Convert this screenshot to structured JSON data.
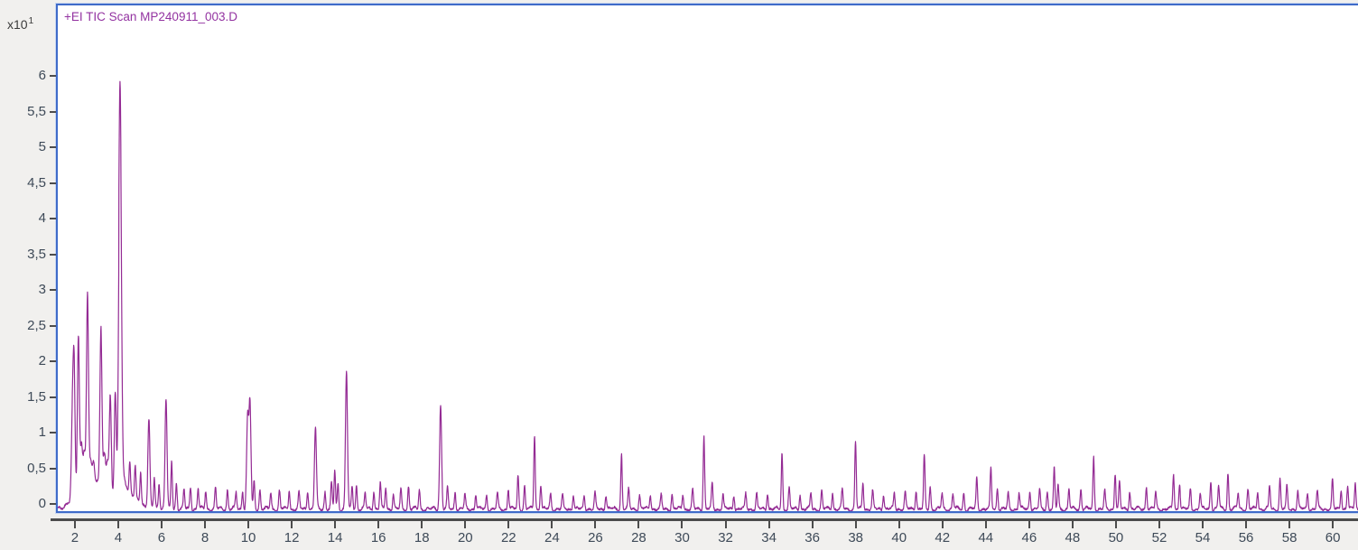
{
  "colors": {
    "window_bg": "#f1f0ee",
    "plot_bg": "#ffffff",
    "frame_border": "#3f6bc9",
    "axis_line": "#4c4c4c",
    "tick_label": "#3e4a58",
    "title": "#9333a1",
    "trace": "#942b94"
  },
  "chart_data": {
    "type": "line",
    "title": "+EI TIC Scan MP240911_003.D",
    "y_scale": {
      "base": "x10",
      "exponent": "1"
    },
    "legend": "none",
    "grid": false,
    "x_axis": {
      "range": [
        1.13,
        61.16
      ],
      "ticks": [
        2,
        4,
        6,
        8,
        10,
        12,
        14,
        16,
        18,
        20,
        22,
        24,
        26,
        28,
        30,
        32,
        34,
        36,
        38,
        40,
        42,
        44,
        46,
        48,
        50,
        52,
        54,
        56,
        58,
        60
      ],
      "labels": [
        "2",
        "4",
        "6",
        "8",
        "10",
        "12",
        "14",
        "16",
        "18",
        "20",
        "22",
        "24",
        "26",
        "28",
        "30",
        "32",
        "34",
        "36",
        "38",
        "40",
        "42",
        "44",
        "46",
        "48",
        "50",
        "52",
        "54",
        "56",
        "58",
        "60"
      ]
    },
    "y_axis": {
      "range": [
        -0.15,
        6.99
      ],
      "ticks": [
        0,
        0.5,
        1,
        1.5,
        2,
        2.5,
        3,
        3.5,
        4,
        4.5,
        5,
        5.5,
        6
      ],
      "labels": [
        "0",
        "0,5",
        "1",
        "1,5",
        "2",
        "2,5",
        "3",
        "3,5",
        "4",
        "4,5",
        "5",
        "5,5",
        "6"
      ]
    },
    "series": [
      {
        "name": "+EI TIC Scan",
        "color": "#942b94",
        "baseline": -0.07,
        "peaks": [
          [
            1.8,
            1.1
          ],
          [
            1.88,
            1.95
          ],
          [
            2.08,
            2.36
          ],
          [
            2.22,
            0.85
          ],
          [
            2.35,
            0.7
          ],
          [
            2.5,
            2.95
          ],
          [
            2.64,
            0.6
          ],
          [
            2.78,
            0.62
          ],
          [
            3.12,
            2.48
          ],
          [
            3.28,
            0.68
          ],
          [
            3.42,
            0.6
          ],
          [
            3.55,
            1.53
          ],
          [
            3.78,
            1.58
          ],
          [
            4.0,
            5.9
          ],
          [
            4.45,
            0.6
          ],
          [
            4.7,
            0.52
          ],
          [
            4.95,
            0.46
          ],
          [
            5.33,
            1.18
          ],
          [
            5.58,
            0.35
          ],
          [
            5.8,
            0.3
          ],
          [
            6.12,
            1.47
          ],
          [
            6.38,
            0.6
          ],
          [
            6.6,
            0.3
          ],
          [
            6.95,
            0.2
          ],
          [
            7.25,
            0.24
          ],
          [
            7.6,
            0.22
          ],
          [
            7.95,
            0.18
          ],
          [
            8.4,
            0.22
          ],
          [
            8.95,
            0.2
          ],
          [
            9.35,
            0.16
          ],
          [
            9.65,
            0.2
          ],
          [
            9.88,
            1.2
          ],
          [
            9.99,
            1.42
          ],
          [
            10.18,
            0.32
          ],
          [
            10.45,
            0.2
          ],
          [
            10.95,
            0.15
          ],
          [
            11.35,
            0.18
          ],
          [
            11.8,
            0.2
          ],
          [
            12.25,
            0.15
          ],
          [
            12.65,
            0.2
          ],
          [
            13.01,
            1.07
          ],
          [
            13.45,
            0.18
          ],
          [
            13.75,
            0.3
          ],
          [
            13.9,
            0.46
          ],
          [
            14.05,
            0.28
          ],
          [
            14.44,
            1.87
          ],
          [
            14.7,
            0.25
          ],
          [
            14.9,
            0.26
          ],
          [
            15.3,
            0.15
          ],
          [
            15.7,
            0.18
          ],
          [
            16.0,
            0.3
          ],
          [
            16.25,
            0.22
          ],
          [
            16.6,
            0.15
          ],
          [
            16.95,
            0.2
          ],
          [
            17.3,
            0.25
          ],
          [
            17.8,
            0.2
          ],
          [
            18.78,
            1.39
          ],
          [
            19.1,
            0.22
          ],
          [
            19.45,
            0.18
          ],
          [
            19.9,
            0.12
          ],
          [
            20.4,
            0.14
          ],
          [
            20.9,
            0.12
          ],
          [
            21.4,
            0.14
          ],
          [
            21.9,
            0.22
          ],
          [
            22.35,
            0.4
          ],
          [
            22.65,
            0.25
          ],
          [
            23.11,
            0.96
          ],
          [
            23.4,
            0.28
          ],
          [
            23.85,
            0.14
          ],
          [
            24.4,
            0.12
          ],
          [
            24.9,
            0.13
          ],
          [
            25.4,
            0.12
          ],
          [
            25.9,
            0.14
          ],
          [
            26.4,
            0.13
          ],
          [
            27.12,
            0.7
          ],
          [
            27.45,
            0.2
          ],
          [
            27.95,
            0.13
          ],
          [
            28.45,
            0.13
          ],
          [
            28.95,
            0.12
          ],
          [
            29.45,
            0.13
          ],
          [
            29.95,
            0.14
          ],
          [
            30.4,
            0.2
          ],
          [
            30.92,
            0.97
          ],
          [
            31.3,
            0.28
          ],
          [
            31.8,
            0.14
          ],
          [
            32.3,
            0.13
          ],
          [
            32.85,
            0.15
          ],
          [
            33.35,
            0.14
          ],
          [
            33.85,
            0.16
          ],
          [
            34.52,
            0.71
          ],
          [
            34.85,
            0.22
          ],
          [
            35.35,
            0.14
          ],
          [
            35.85,
            0.15
          ],
          [
            36.35,
            0.18
          ],
          [
            36.85,
            0.16
          ],
          [
            37.3,
            0.2
          ],
          [
            37.91,
            0.87
          ],
          [
            38.25,
            0.3
          ],
          [
            38.7,
            0.18
          ],
          [
            39.2,
            0.14
          ],
          [
            39.7,
            0.15
          ],
          [
            40.2,
            0.16
          ],
          [
            40.7,
            0.2
          ],
          [
            41.08,
            0.67
          ],
          [
            41.35,
            0.25
          ],
          [
            41.9,
            0.14
          ],
          [
            42.4,
            0.15
          ],
          [
            42.9,
            0.16
          ],
          [
            43.5,
            0.36
          ],
          [
            44.15,
            0.49
          ],
          [
            44.45,
            0.22
          ],
          [
            44.95,
            0.14
          ],
          [
            45.45,
            0.16
          ],
          [
            45.95,
            0.18
          ],
          [
            46.4,
            0.2
          ],
          [
            46.75,
            0.18
          ],
          [
            47.07,
            0.49
          ],
          [
            47.25,
            0.28
          ],
          [
            47.75,
            0.2
          ],
          [
            48.3,
            0.22
          ],
          [
            48.89,
            0.66
          ],
          [
            49.4,
            0.18
          ],
          [
            49.88,
            0.44
          ],
          [
            50.08,
            0.3
          ],
          [
            50.55,
            0.18
          ],
          [
            51.32,
            0.25
          ],
          [
            51.75,
            0.16
          ],
          [
            52.57,
            0.42
          ],
          [
            52.85,
            0.3
          ],
          [
            53.35,
            0.2
          ],
          [
            53.8,
            0.16
          ],
          [
            54.29,
            0.33
          ],
          [
            54.65,
            0.25
          ],
          [
            55.08,
            0.43
          ],
          [
            55.55,
            0.16
          ],
          [
            56.0,
            0.2
          ],
          [
            56.45,
            0.18
          ],
          [
            57.0,
            0.25
          ],
          [
            57.48,
            0.36
          ],
          [
            57.8,
            0.25
          ],
          [
            58.3,
            0.18
          ],
          [
            58.75,
            0.16
          ],
          [
            59.2,
            0.18
          ],
          [
            59.9,
            0.33
          ],
          [
            60.3,
            0.2
          ],
          [
            60.6,
            0.25
          ],
          [
            60.95,
            0.3
          ]
        ]
      }
    ]
  }
}
